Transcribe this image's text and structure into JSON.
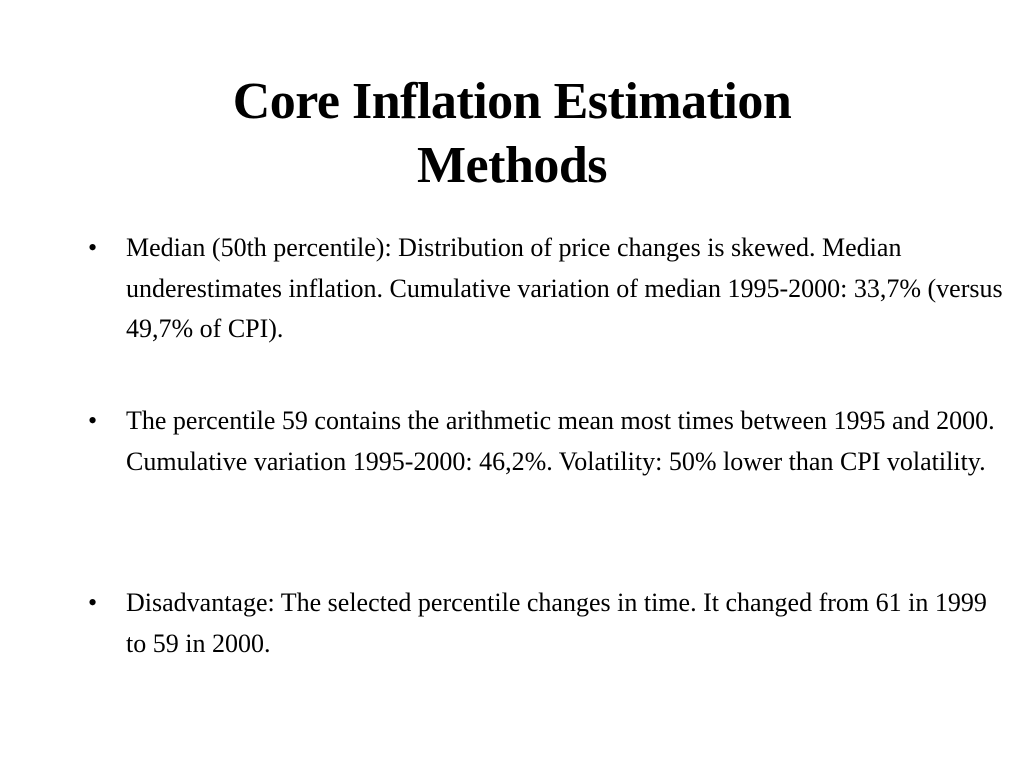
{
  "slide": {
    "title": "Core Inflation Estimation Methods",
    "title_lines": [
      "Core Inflation Estimation",
      "Methods"
    ],
    "bullet_marker": "•",
    "bullets": [
      {
        "text": "Median (50th percentile): Distribution of price changes is skewed. Median underestimates inflation. Cumulative variation of median 1995-2000: 33,7% (versus 49,7% of CPI)."
      },
      {
        "text": "The percentile 59 contains the arithmetic mean most times between 1995 and 2000. Cumulative variation 1995-2000: 46,2%. Volatility: 50% lower than CPI volatility."
      },
      {
        "text": "Disadvantage: The selected percentile changes in time. It changed from 61 in 1999 to 59 in 2000."
      }
    ]
  },
  "colors": {
    "background": "#ffffff",
    "text": "#000000"
  }
}
